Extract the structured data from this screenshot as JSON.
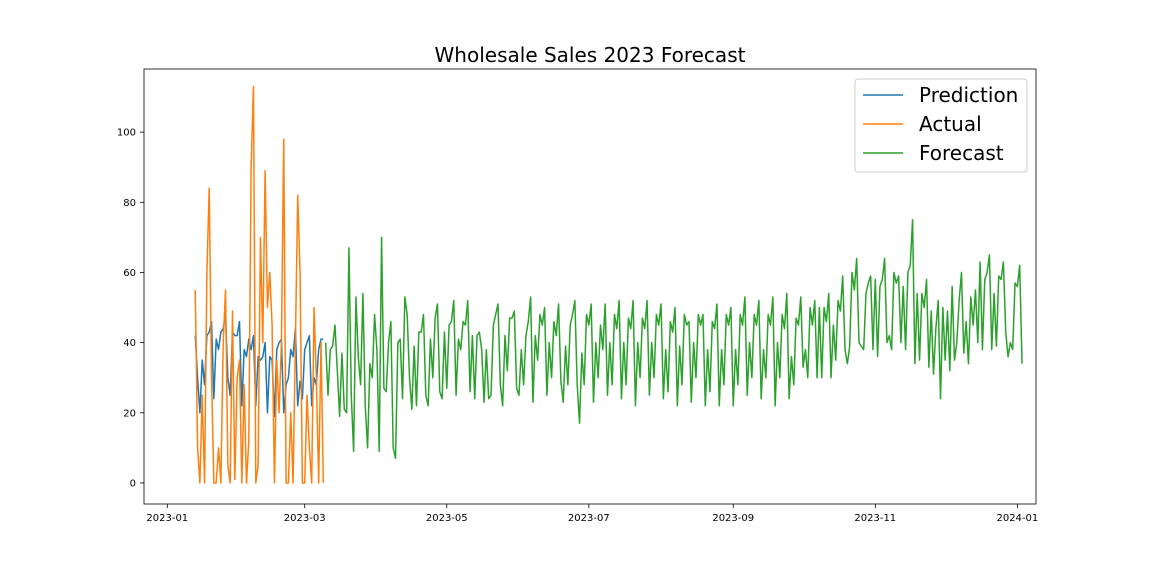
{
  "chart_data": {
    "type": "line",
    "title": "Wholesale Sales 2023 Forecast",
    "xlabel": "",
    "ylabel": "",
    "xlim": [
      "2022-12-22",
      "2024-01-09"
    ],
    "ylim": [
      -6,
      118
    ],
    "x_ticks": [
      "2023-01",
      "2023-03",
      "2023-05",
      "2023-07",
      "2023-09",
      "2023-11",
      "2024-01"
    ],
    "y_ticks": [
      0,
      20,
      40,
      60,
      80,
      100
    ],
    "legend_position": "top-right",
    "grid": false,
    "series": [
      {
        "name": "Prediction",
        "color": "#1f77b4",
        "start": "2023-01-13",
        "values": [
          42,
          30,
          20,
          35,
          28,
          42,
          43,
          46,
          24,
          41,
          38,
          43,
          44,
          48,
          30,
          25,
          43,
          42,
          42,
          46,
          22,
          38,
          36,
          41,
          38,
          42,
          22,
          36,
          35,
          36,
          40,
          20,
          36,
          35,
          19,
          38,
          40,
          41,
          20,
          28,
          30,
          38,
          36,
          44,
          22,
          29,
          24,
          38,
          40,
          42,
          22,
          30,
          28,
          38,
          41,
          41
        ]
      },
      {
        "name": "Actual",
        "color": "#ff7f0e",
        "start": "2023-01-13",
        "values": [
          55,
          10,
          0,
          25,
          0,
          60,
          84,
          30,
          0,
          0,
          10,
          0,
          40,
          55,
          5,
          0,
          49,
          1,
          30,
          35,
          0,
          28,
          0,
          12,
          90,
          113,
          0,
          5,
          70,
          40,
          89,
          50,
          60,
          45,
          0,
          35,
          20,
          40,
          98,
          0,
          0,
          20,
          0,
          40,
          82,
          60,
          0,
          0,
          25,
          10,
          0,
          50,
          30,
          0,
          40,
          0
        ]
      },
      {
        "name": "Forecast",
        "color": "#2ca02c",
        "start": "2023-03-10",
        "values": [
          40,
          25,
          38,
          39,
          45,
          32,
          19,
          37,
          21,
          20,
          67,
          25,
          9,
          53,
          36,
          28,
          54,
          22,
          10,
          34,
          30,
          48,
          38,
          9,
          70,
          27,
          26,
          40,
          46,
          10,
          7,
          40,
          41,
          24,
          53,
          48,
          30,
          21,
          39,
          22,
          43,
          43,
          48,
          25,
          22,
          41,
          30,
          47,
          51,
          26,
          24,
          43,
          27,
          45,
          46,
          52,
          25,
          41,
          38,
          46,
          45,
          52,
          26,
          42,
          24,
          42,
          43,
          38,
          23,
          38,
          24,
          25,
          45,
          48,
          51,
          28,
          22,
          42,
          32,
          47,
          47,
          49,
          27,
          25,
          38,
          28,
          42,
          46,
          53,
          23,
          42,
          35,
          48,
          45,
          50,
          25,
          40,
          30,
          46,
          42,
          51,
          29,
          23,
          39,
          28,
          45,
          48,
          52,
          28,
          17,
          37,
          28,
          48,
          45,
          51,
          23,
          40,
          30,
          45,
          38,
          51,
          25,
          40,
          28,
          48,
          44,
          52,
          24,
          40,
          28,
          47,
          44,
          52,
          22,
          40,
          30,
          47,
          44,
          52,
          25,
          40,
          30,
          48,
          45,
          51,
          24,
          38,
          26,
          46,
          43,
          50,
          22,
          39,
          28,
          48,
          45,
          46,
          23,
          40,
          30,
          48,
          45,
          48,
          22,
          38,
          26,
          46,
          44,
          51,
          22,
          38,
          28,
          48,
          45,
          50,
          22,
          38,
          28,
          48,
          45,
          53,
          25,
          40,
          30,
          48,
          45,
          52,
          24,
          38,
          30,
          48,
          45,
          53,
          22,
          40,
          30,
          48,
          44,
          54,
          24,
          36,
          28,
          47,
          45,
          53,
          33,
          38,
          30,
          50,
          45,
          52,
          30,
          50,
          30,
          50,
          46,
          54,
          30,
          45,
          35,
          52,
          49,
          59,
          38,
          34,
          39,
          60,
          55,
          64,
          40,
          39,
          38,
          54,
          57,
          59,
          38,
          58,
          36,
          56,
          58,
          64,
          40,
          42,
          38,
          60,
          57,
          59,
          40,
          56,
          38,
          60,
          62,
          75,
          34,
          54,
          35,
          54,
          50,
          58,
          33,
          49,
          31,
          44,
          52,
          24,
          50,
          35,
          49,
          32,
          56,
          35,
          40,
          52,
          60,
          37,
          46,
          34,
          53,
          45,
          55,
          40,
          63,
          38,
          58,
          60,
          65,
          38,
          54,
          39,
          59,
          58,
          63,
          43,
          36,
          40,
          38,
          57,
          56,
          62,
          34
        ]
      }
    ]
  }
}
